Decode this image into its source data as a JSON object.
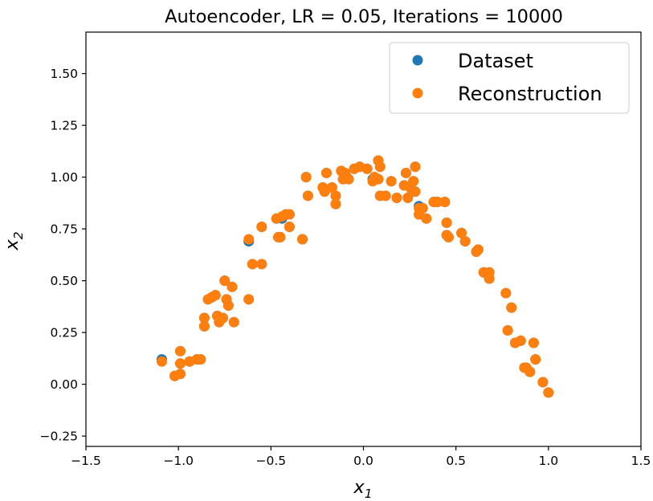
{
  "chart_data": {
    "type": "scatter",
    "title": "Autoencoder, LR = 0.05, Iterations = 10000",
    "xlabel": "x",
    "xlabel_sub": "1",
    "ylabel": "x",
    "ylabel_sub": "2",
    "xlim": [
      -1.5,
      1.5
    ],
    "ylim": [
      -0.3,
      1.7
    ],
    "xticks": [
      -1.5,
      -1.0,
      -0.5,
      0.0,
      0.5,
      1.0,
      1.5
    ],
    "xtick_labels": [
      "−1.5",
      "−1.0",
      "−0.5",
      "0.0",
      "0.5",
      "1.0",
      "1.5"
    ],
    "yticks": [
      -0.25,
      0.0,
      0.25,
      0.5,
      0.75,
      1.0,
      1.25,
      1.5
    ],
    "ytick_labels": [
      "−0.25",
      "0.00",
      "0.25",
      "0.50",
      "0.75",
      "1.00",
      "1.25",
      "1.50"
    ],
    "grid": false,
    "legend_position": "top-right",
    "series": [
      {
        "name": "Dataset",
        "color": "#1f77b4",
        "points": [
          [
            -1.09,
            0.12
          ],
          [
            -1.02,
            0.04
          ],
          [
            -0.99,
            0.16
          ],
          [
            -0.99,
            0.1
          ],
          [
            -0.99,
            0.05
          ],
          [
            -0.94,
            0.11
          ],
          [
            -0.9,
            0.12
          ],
          [
            -0.88,
            0.12
          ],
          [
            -0.86,
            0.28
          ],
          [
            -0.86,
            0.32
          ],
          [
            -0.84,
            0.41
          ],
          [
            -0.82,
            0.42
          ],
          [
            -0.8,
            0.43
          ],
          [
            -0.79,
            0.33
          ],
          [
            -0.78,
            0.3
          ],
          [
            -0.76,
            0.32
          ],
          [
            -0.75,
            0.5
          ],
          [
            -0.74,
            0.41
          ],
          [
            -0.73,
            0.38
          ],
          [
            -0.71,
            0.47
          ],
          [
            -0.7,
            0.3
          ],
          [
            -0.62,
            0.69
          ],
          [
            -0.62,
            0.41
          ],
          [
            -0.6,
            0.58
          ],
          [
            -0.55,
            0.58
          ],
          [
            -0.55,
            0.76
          ],
          [
            -0.47,
            0.8
          ],
          [
            -0.46,
            0.71
          ],
          [
            -0.45,
            0.71
          ],
          [
            -0.44,
            0.8
          ],
          [
            -0.42,
            0.82
          ],
          [
            -0.4,
            0.76
          ],
          [
            -0.4,
            0.82
          ],
          [
            -0.33,
            0.7
          ],
          [
            -0.31,
            1.0
          ],
          [
            -0.3,
            0.91
          ],
          [
            -0.22,
            0.95
          ],
          [
            -0.21,
            0.93
          ],
          [
            -0.2,
            1.02
          ],
          [
            -0.17,
            0.95
          ],
          [
            -0.15,
            0.91
          ],
          [
            -0.15,
            0.87
          ],
          [
            -0.12,
            1.03
          ],
          [
            -0.11,
            0.99
          ],
          [
            -0.1,
            1.02
          ],
          [
            -0.09,
            1.0
          ],
          [
            -0.08,
            0.99
          ],
          [
            -0.05,
            1.04
          ],
          [
            -0.02,
            1.05
          ],
          [
            0.02,
            1.04
          ],
          [
            0.05,
            0.99
          ],
          [
            0.06,
            1.0
          ],
          [
            0.08,
            1.08
          ],
          [
            0.08,
            0.99
          ],
          [
            0.09,
            1.05
          ],
          [
            0.09,
            0.91
          ],
          [
            0.12,
            0.91
          ],
          [
            0.15,
            0.98
          ],
          [
            0.18,
            0.9
          ],
          [
            0.22,
            0.96
          ],
          [
            0.23,
            1.02
          ],
          [
            0.24,
            0.9
          ],
          [
            0.26,
            0.94
          ],
          [
            0.27,
            0.98
          ],
          [
            0.28,
            1.05
          ],
          [
            0.28,
            0.93
          ],
          [
            0.3,
            0.86
          ],
          [
            0.3,
            0.82
          ],
          [
            0.32,
            0.85
          ],
          [
            0.34,
            0.8
          ],
          [
            0.38,
            0.88
          ],
          [
            0.4,
            0.88
          ],
          [
            0.44,
            0.88
          ],
          [
            0.45,
            0.72
          ],
          [
            0.45,
            0.78
          ],
          [
            0.46,
            0.71
          ],
          [
            0.53,
            0.73
          ],
          [
            0.55,
            0.69
          ],
          [
            0.61,
            0.64
          ],
          [
            0.62,
            0.65
          ],
          [
            0.65,
            0.54
          ],
          [
            0.68,
            0.54
          ],
          [
            0.68,
            0.51
          ],
          [
            0.77,
            0.44
          ],
          [
            0.78,
            0.26
          ],
          [
            0.8,
            0.37
          ],
          [
            0.82,
            0.2
          ],
          [
            0.85,
            0.21
          ],
          [
            0.87,
            0.08
          ],
          [
            0.88,
            0.08
          ],
          [
            0.9,
            0.06
          ],
          [
            0.92,
            0.2
          ],
          [
            0.93,
            0.12
          ],
          [
            0.97,
            0.01
          ],
          [
            1.0,
            -0.04
          ]
        ]
      },
      {
        "name": "Reconstruction",
        "color": "#ff7f0e",
        "points": [
          [
            -1.09,
            0.11
          ],
          [
            -1.02,
            0.04
          ],
          [
            -0.99,
            0.16
          ],
          [
            -0.99,
            0.1
          ],
          [
            -0.99,
            0.05
          ],
          [
            -0.94,
            0.11
          ],
          [
            -0.9,
            0.12
          ],
          [
            -0.88,
            0.12
          ],
          [
            -0.86,
            0.28
          ],
          [
            -0.86,
            0.32
          ],
          [
            -0.84,
            0.41
          ],
          [
            -0.82,
            0.42
          ],
          [
            -0.8,
            0.43
          ],
          [
            -0.79,
            0.33
          ],
          [
            -0.78,
            0.3
          ],
          [
            -0.76,
            0.32
          ],
          [
            -0.75,
            0.5
          ],
          [
            -0.74,
            0.41
          ],
          [
            -0.73,
            0.38
          ],
          [
            -0.71,
            0.47
          ],
          [
            -0.7,
            0.3
          ],
          [
            -0.62,
            0.7
          ],
          [
            -0.62,
            0.41
          ],
          [
            -0.6,
            0.58
          ],
          [
            -0.55,
            0.58
          ],
          [
            -0.55,
            0.76
          ],
          [
            -0.47,
            0.8
          ],
          [
            -0.46,
            0.71
          ],
          [
            -0.45,
            0.71
          ],
          [
            -0.44,
            0.81
          ],
          [
            -0.42,
            0.82
          ],
          [
            -0.4,
            0.76
          ],
          [
            -0.4,
            0.82
          ],
          [
            -0.33,
            0.7
          ],
          [
            -0.31,
            1.0
          ],
          [
            -0.3,
            0.91
          ],
          [
            -0.22,
            0.95
          ],
          [
            -0.21,
            0.93
          ],
          [
            -0.2,
            1.02
          ],
          [
            -0.17,
            0.95
          ],
          [
            -0.15,
            0.91
          ],
          [
            -0.15,
            0.87
          ],
          [
            -0.12,
            1.03
          ],
          [
            -0.11,
            0.99
          ],
          [
            -0.1,
            1.02
          ],
          [
            -0.09,
            1.0
          ],
          [
            -0.08,
            0.99
          ],
          [
            -0.05,
            1.04
          ],
          [
            -0.02,
            1.05
          ],
          [
            0.02,
            1.04
          ],
          [
            0.05,
            0.98
          ],
          [
            0.06,
            1.0
          ],
          [
            0.08,
            1.08
          ],
          [
            0.08,
            0.99
          ],
          [
            0.09,
            1.05
          ],
          [
            0.09,
            0.91
          ],
          [
            0.12,
            0.91
          ],
          [
            0.15,
            0.98
          ],
          [
            0.18,
            0.9
          ],
          [
            0.22,
            0.96
          ],
          [
            0.23,
            1.02
          ],
          [
            0.24,
            0.9
          ],
          [
            0.26,
            0.94
          ],
          [
            0.27,
            0.98
          ],
          [
            0.28,
            1.05
          ],
          [
            0.28,
            0.93
          ],
          [
            0.3,
            0.85
          ],
          [
            0.3,
            0.82
          ],
          [
            0.32,
            0.85
          ],
          [
            0.34,
            0.8
          ],
          [
            0.38,
            0.88
          ],
          [
            0.4,
            0.88
          ],
          [
            0.44,
            0.88
          ],
          [
            0.45,
            0.72
          ],
          [
            0.45,
            0.78
          ],
          [
            0.46,
            0.71
          ],
          [
            0.53,
            0.73
          ],
          [
            0.55,
            0.69
          ],
          [
            0.61,
            0.64
          ],
          [
            0.62,
            0.65
          ],
          [
            0.65,
            0.54
          ],
          [
            0.68,
            0.54
          ],
          [
            0.68,
            0.51
          ],
          [
            0.77,
            0.44
          ],
          [
            0.78,
            0.26
          ],
          [
            0.8,
            0.37
          ],
          [
            0.82,
            0.2
          ],
          [
            0.85,
            0.21
          ],
          [
            0.87,
            0.08
          ],
          [
            0.88,
            0.08
          ],
          [
            0.9,
            0.06
          ],
          [
            0.92,
            0.2
          ],
          [
            0.93,
            0.12
          ],
          [
            0.97,
            0.01
          ],
          [
            1.0,
            -0.04
          ]
        ]
      }
    ]
  }
}
